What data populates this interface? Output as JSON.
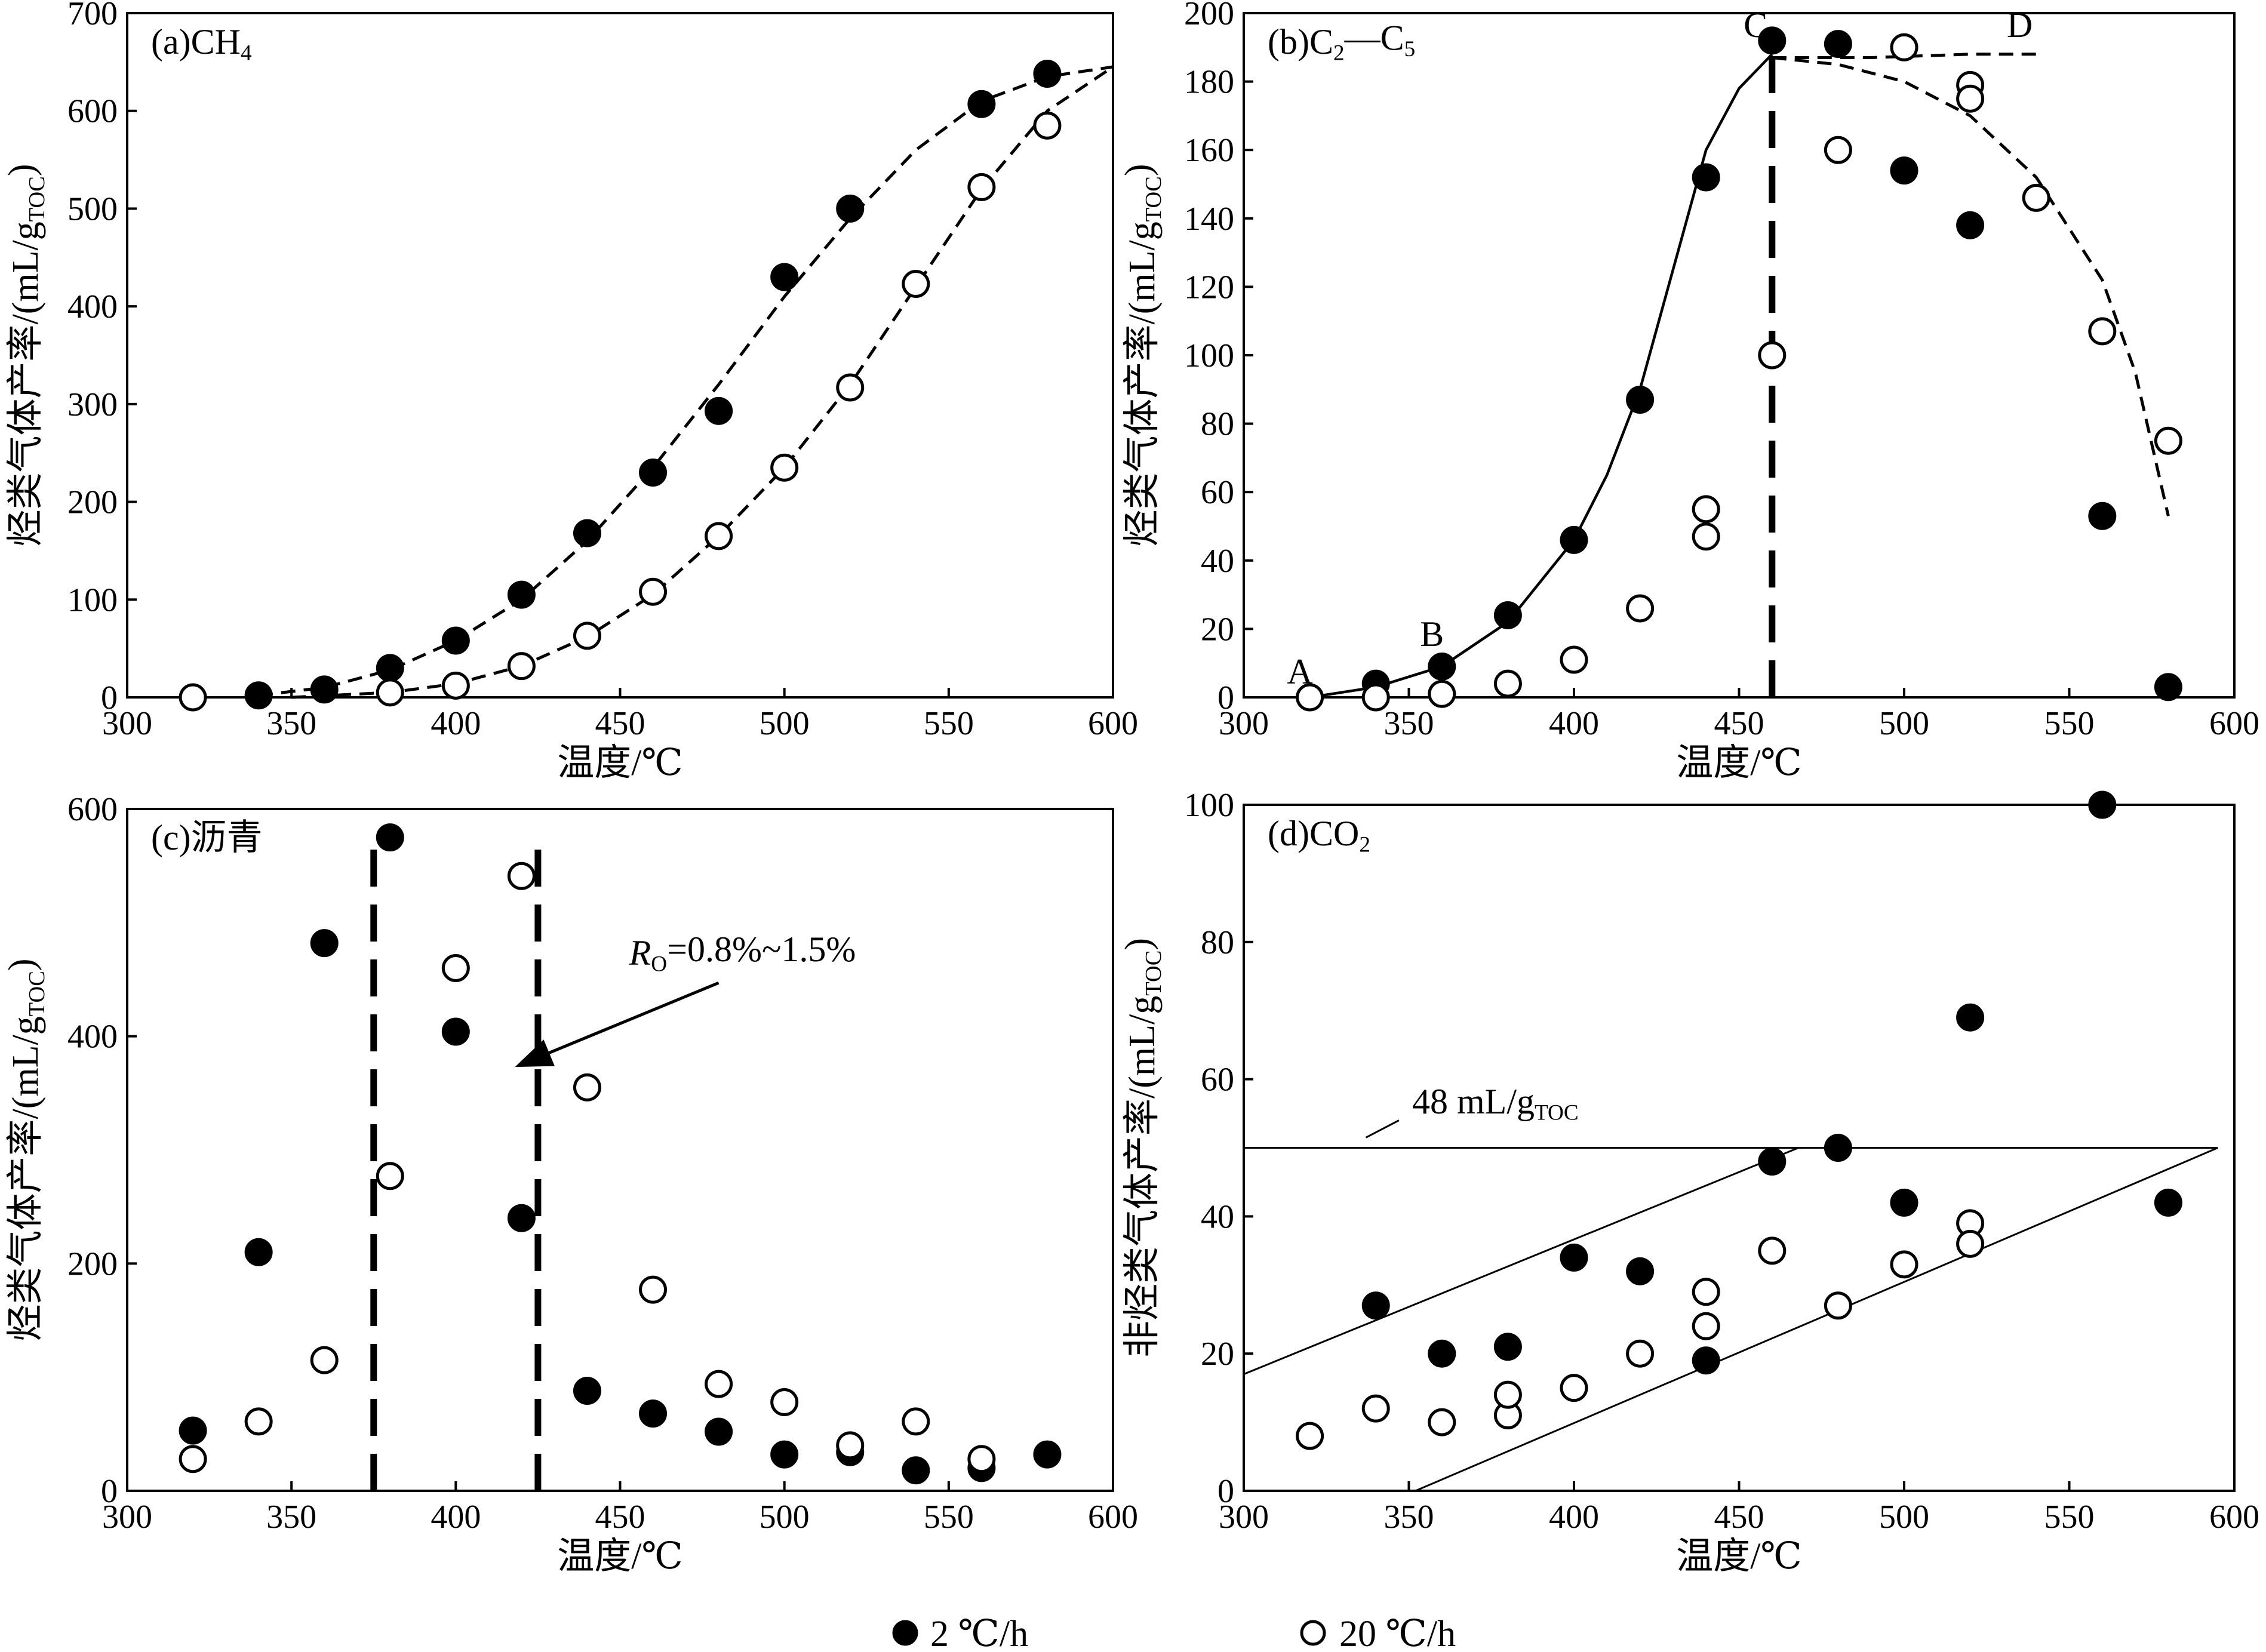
{
  "legend": {
    "filled": {
      "label": "2 ℃/h"
    },
    "open": {
      "label": "20 ℃/h"
    }
  },
  "chart_data": [
    {
      "panel": "a",
      "type": "scatter",
      "title": "(a)CH",
      "title_sub": "4",
      "xlabel": "温度/℃",
      "ylabel": "烃类气体产率/(mL/g",
      "ylabel_sub": "TOC",
      "ylabel_close": ")",
      "xlim": [
        300,
        600
      ],
      "ylim": [
        0,
        700
      ],
      "xticks": [
        300,
        350,
        400,
        450,
        500,
        550,
        600
      ],
      "yticks": [
        0,
        100,
        200,
        300,
        400,
        500,
        600,
        700
      ],
      "series": [
        {
          "marker": "filled",
          "x": [
            340,
            360,
            380,
            400,
            420,
            440,
            460,
            480,
            500,
            520,
            560,
            580
          ],
          "y": [
            2,
            8,
            30,
            58,
            105,
            168,
            230,
            293,
            430,
            500,
            607,
            638
          ]
        },
        {
          "marker": "open",
          "x": [
            320,
            380,
            400,
            420,
            440,
            460,
            480,
            500,
            520,
            540,
            560,
            580
          ],
          "y": [
            0,
            5,
            12,
            32,
            63,
            108,
            165,
            235,
            317,
            423,
            522,
            585
          ]
        }
      ],
      "curves": [
        {
          "style": "dashed",
          "x": [
            340,
            360,
            380,
            400,
            420,
            440,
            460,
            480,
            500,
            520,
            540,
            560,
            580,
            600
          ],
          "y": [
            2,
            10,
            28,
            58,
            100,
            160,
            235,
            320,
            410,
            490,
            560,
            610,
            635,
            645
          ]
        },
        {
          "style": "dashed",
          "x": [
            350,
            380,
            400,
            420,
            440,
            460,
            480,
            500,
            520,
            540,
            560,
            580,
            600
          ],
          "y": [
            0,
            5,
            14,
            32,
            62,
            105,
            165,
            235,
            320,
            420,
            520,
            600,
            645
          ]
        }
      ]
    },
    {
      "panel": "b",
      "type": "scatter",
      "title": "(b)C",
      "title_sub": "2",
      "title_mid": "—C",
      "title_sub2": "5",
      "xlabel": "温度/℃",
      "ylabel": "烃类气体产率/(mL/g",
      "ylabel_sub": "TOC",
      "ylabel_close": ")",
      "xlim": [
        300,
        600
      ],
      "ylim": [
        0,
        200
      ],
      "xticks": [
        300,
        350,
        400,
        450,
        500,
        550,
        600
      ],
      "yticks": [
        0,
        20,
        40,
        60,
        80,
        100,
        120,
        140,
        160,
        180,
        200
      ],
      "series": [
        {
          "marker": "filled",
          "x": [
            340,
            360,
            380,
            400,
            420,
            440,
            460,
            480,
            500,
            520,
            560,
            580
          ],
          "y": [
            4,
            9,
            24,
            46,
            87,
            152,
            192,
            191,
            154,
            138,
            53,
            3
          ]
        },
        {
          "marker": "open",
          "x": [
            320,
            340,
            360,
            380,
            400,
            420,
            440,
            440,
            460,
            480,
            500,
            520,
            520,
            540,
            560,
            580
          ],
          "y": [
            0,
            0,
            1,
            4,
            11,
            26,
            47,
            55,
            100,
            160,
            190,
            179,
            175,
            146,
            107,
            75
          ]
        }
      ],
      "curves": [
        {
          "style": "solid",
          "x": [
            320,
            340,
            360,
            380,
            400,
            410,
            420,
            430,
            440,
            450,
            460
          ],
          "y": [
            0,
            3,
            9,
            22,
            46,
            65,
            90,
            125,
            160,
            178,
            188
          ]
        },
        {
          "style": "dashed",
          "x": [
            460,
            490,
            520,
            540
          ],
          "y": [
            187,
            187,
            188,
            188
          ]
        },
        {
          "style": "dashed",
          "x": [
            460,
            480,
            500,
            520,
            540,
            560,
            570,
            580
          ],
          "y": [
            187,
            185,
            180,
            170,
            152,
            122,
            95,
            53
          ]
        },
        {
          "style": "longdash",
          "x": [
            460,
            460
          ],
          "y": [
            0,
            195
          ]
        }
      ],
      "point_labels": [
        {
          "text": "A",
          "x": 317,
          "y": 4
        },
        {
          "text": "B",
          "x": 357,
          "y": 15
        },
        {
          "text": "C",
          "x": 455,
          "y": 193
        },
        {
          "text": "D",
          "x": 535,
          "y": 193
        }
      ]
    },
    {
      "panel": "c",
      "type": "scatter",
      "title": "(c)沥青",
      "xlabel": "温度/℃",
      "ylabel": "烃类气体产率/(mL/g",
      "ylabel_sub": "TOC",
      "ylabel_close": ")",
      "xlim": [
        300,
        600
      ],
      "ylim": [
        0,
        600
      ],
      "xticks": [
        300,
        350,
        400,
        450,
        500,
        550,
        600
      ],
      "yticks": [
        0,
        200,
        400,
        600
      ],
      "series": [
        {
          "marker": "filled",
          "x": [
            320,
            340,
            360,
            380,
            400,
            420,
            440,
            460,
            480,
            500,
            520,
            540,
            560,
            580
          ],
          "y": [
            53,
            210,
            482,
            575,
            404,
            240,
            88,
            68,
            52,
            32,
            34,
            18,
            20,
            32
          ]
        },
        {
          "marker": "open",
          "x": [
            320,
            340,
            360,
            380,
            400,
            420,
            440,
            460,
            480,
            500,
            520,
            540,
            560
          ],
          "y": [
            28,
            61,
            115,
            277,
            460,
            541,
            355,
            177,
            94,
            78,
            40,
            61,
            28
          ]
        }
      ],
      "curves": [
        {
          "style": "longdash",
          "x": [
            375,
            375
          ],
          "y": [
            0,
            575
          ]
        },
        {
          "style": "longdash",
          "x": [
            425,
            425
          ],
          "y": [
            0,
            575
          ]
        }
      ],
      "annotation": {
        "text_R": "R",
        "text_sub": "O",
        "text_rest": "=0.8%~1.5%",
        "arrow_from": [
          480,
          447
        ],
        "arrow_to": [
          418,
          373
        ]
      }
    },
    {
      "panel": "d",
      "type": "scatter",
      "title": "(d)CO",
      "title_sub": "2",
      "xlabel": "温度/℃",
      "ylabel": "非烃类气体产率/(mL/g",
      "ylabel_sub": "TOC",
      "ylabel_close": ")",
      "xlim": [
        300,
        600
      ],
      "ylim": [
        0,
        100
      ],
      "xticks": [
        300,
        350,
        400,
        450,
        500,
        550,
        600
      ],
      "yticks": [
        0,
        20,
        40,
        60,
        80,
        100
      ],
      "series": [
        {
          "marker": "filled",
          "x": [
            340,
            360,
            380,
            400,
            420,
            440,
            460,
            480,
            500,
            520,
            560,
            580
          ],
          "y": [
            27,
            20,
            21,
            34,
            32,
            19,
            48,
            50,
            42,
            69,
            100,
            42
          ]
        },
        {
          "marker": "open",
          "x": [
            320,
            340,
            360,
            380,
            380,
            400,
            420,
            440,
            440,
            460,
            480,
            500,
            520,
            520
          ],
          "y": [
            8,
            12,
            10,
            11,
            14,
            15,
            20,
            29,
            24,
            35,
            27,
            33,
            39,
            36
          ]
        }
      ],
      "curves": [
        {
          "style": "thin",
          "x": [
            300,
            595
          ],
          "y": [
            50,
            50
          ]
        },
        {
          "style": "thin",
          "x": [
            300,
            468
          ],
          "y": [
            17,
            50
          ]
        },
        {
          "style": "thin",
          "x": [
            352,
            595
          ],
          "y": [
            0,
            50
          ]
        },
        {
          "style": "thin",
          "x": [
            337,
            347
          ],
          "y": [
            51.5,
            54
          ]
        }
      ],
      "annotation": {
        "text": "48 mL/g",
        "text_sub": "TOC",
        "at": [
          351,
          55
        ]
      }
    }
  ]
}
